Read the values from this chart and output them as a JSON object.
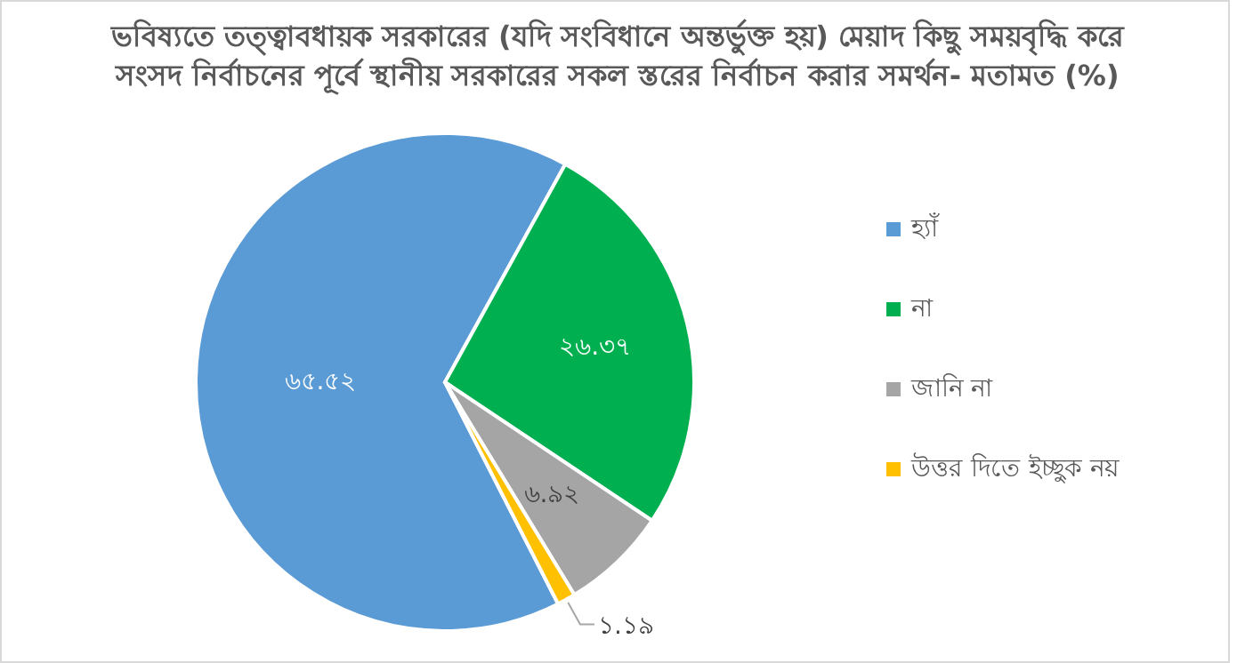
{
  "chart_data": {
    "type": "pie",
    "title": "ভবিষ্যতে তত্ত্বাবধায়ক সরকারের (যদি সংবিধানে অন্তর্ভুক্ত হয়) মেয়াদ কিছু সময়বৃদ্ধি করে সংসদ নির্বাচনের পূর্বে স্থানীয় সরকারের সকল স্তরের নির্বাচন করার সমর্থন- মতামত (%)",
    "categories": [
      "হ্যাঁ",
      "না",
      "জানি না",
      "উত্তর দিতে ইচ্ছুক নয়"
    ],
    "values": [
      65.52,
      26.37,
      6.92,
      1.19
    ],
    "colors": [
      "#5b9bd5",
      "#00b050",
      "#a5a5a5",
      "#ffc000"
    ],
    "value_labels": [
      "৬৫.৫২",
      "২৬.৩৭",
      "৬.৯২",
      "১.১৯"
    ],
    "legend": "right"
  }
}
